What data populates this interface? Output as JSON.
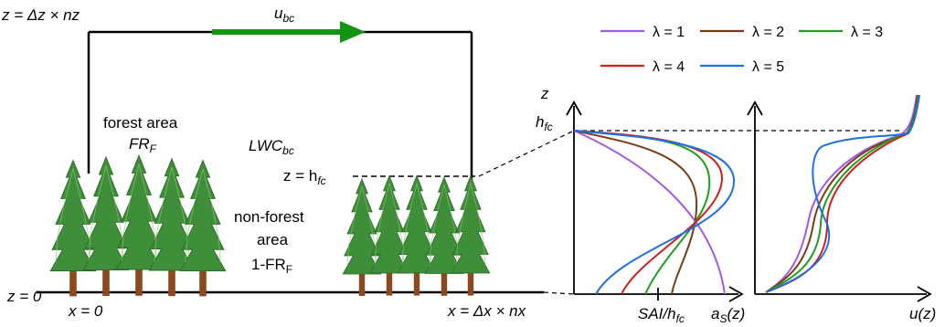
{
  "domain": {
    "top_label": "z = Δz × nz",
    "bottom_label": "z = 0",
    "origin_label": "x = 0",
    "right_label": "x = Δx × nx",
    "bc_label": "u",
    "bc_sub": "bc",
    "forest_label_1": "forest  area",
    "forest_label_2": "FR",
    "forest_sub": "F",
    "lwc_label": "LWC",
    "lwc_sub": "bc",
    "canopy_height_label": "z = h",
    "canopy_height_sub": "fc",
    "nonforest_label_1": "non-forest",
    "nonforest_label_2": "area",
    "nonforest_label_3": "1-FR",
    "nonforest_sub": "F"
  },
  "profiles": {
    "z_axis_label": "z",
    "hfc_label": "h",
    "hfc_sub": "fc",
    "sai_label": "SAI/h",
    "sai_sub": "fc",
    "as_label_main": "a",
    "as_label_sub": "S",
    "as_label_tail": "(z)",
    "u_label": "u(z)"
  },
  "legend": {
    "items": [
      {
        "label": "λ = 1",
        "color": "#a259e6"
      },
      {
        "label": "λ = 2",
        "color": "#7a3c14"
      },
      {
        "label": "λ = 3",
        "color": "#1f9e1f"
      },
      {
        "label": "λ = 4",
        "color": "#cc1f1f"
      },
      {
        "label": "λ = 5",
        "color": "#1f6fe6"
      }
    ]
  },
  "colors": {
    "arrow": "#129612",
    "tree_foliage": "#3f8f3a",
    "tree_trunk": "#8b4a1e"
  }
}
